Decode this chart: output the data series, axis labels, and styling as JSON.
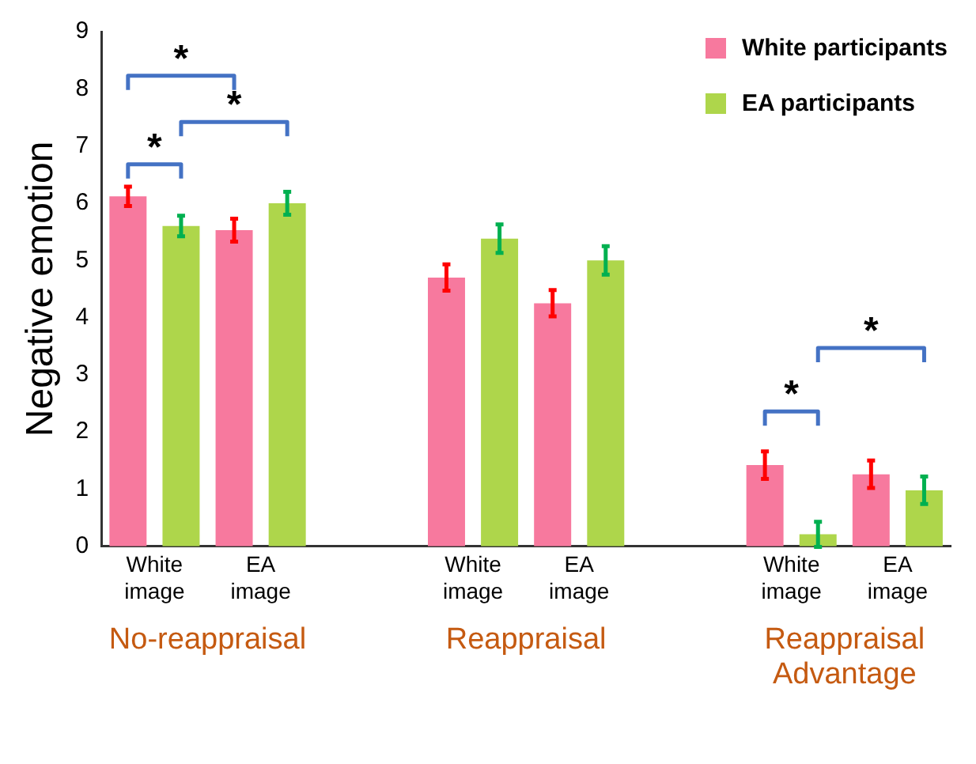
{
  "chart_data": {
    "type": "bar",
    "ylabel": "Negative emotion",
    "categories": [
      "White image",
      "EA image",
      null,
      "White image",
      "EA image",
      null,
      "White image",
      "EA image"
    ],
    "series": [
      {
        "name": "White participants",
        "color": "#f7799e",
        "values": [
          6.12,
          5.53,
          null,
          4.7,
          4.25,
          null,
          1.42,
          1.26
        ],
        "errors": [
          0.17,
          0.2,
          null,
          0.23,
          0.23,
          null,
          0.24,
          0.24
        ]
      },
      {
        "name": "EA participants",
        "color": "#aed64b",
        "values": [
          5.6,
          6.0,
          null,
          5.38,
          5.0,
          null,
          0.21,
          0.98
        ],
        "errors": [
          0.18,
          0.2,
          null,
          0.25,
          0.25,
          null,
          0.22,
          0.24
        ]
      }
    ],
    "ylim": [
      0,
      9
    ],
    "yticks": [
      0,
      1,
      2,
      3,
      4,
      5,
      6,
      7,
      8,
      9
    ],
    "grid": false,
    "legend": "top right",
    "annotations": [
      "No-reappraisal",
      "Reappraisal",
      "Reappraisal Advantage",
      "*",
      "*",
      "*",
      "*",
      "*"
    ]
  }
}
